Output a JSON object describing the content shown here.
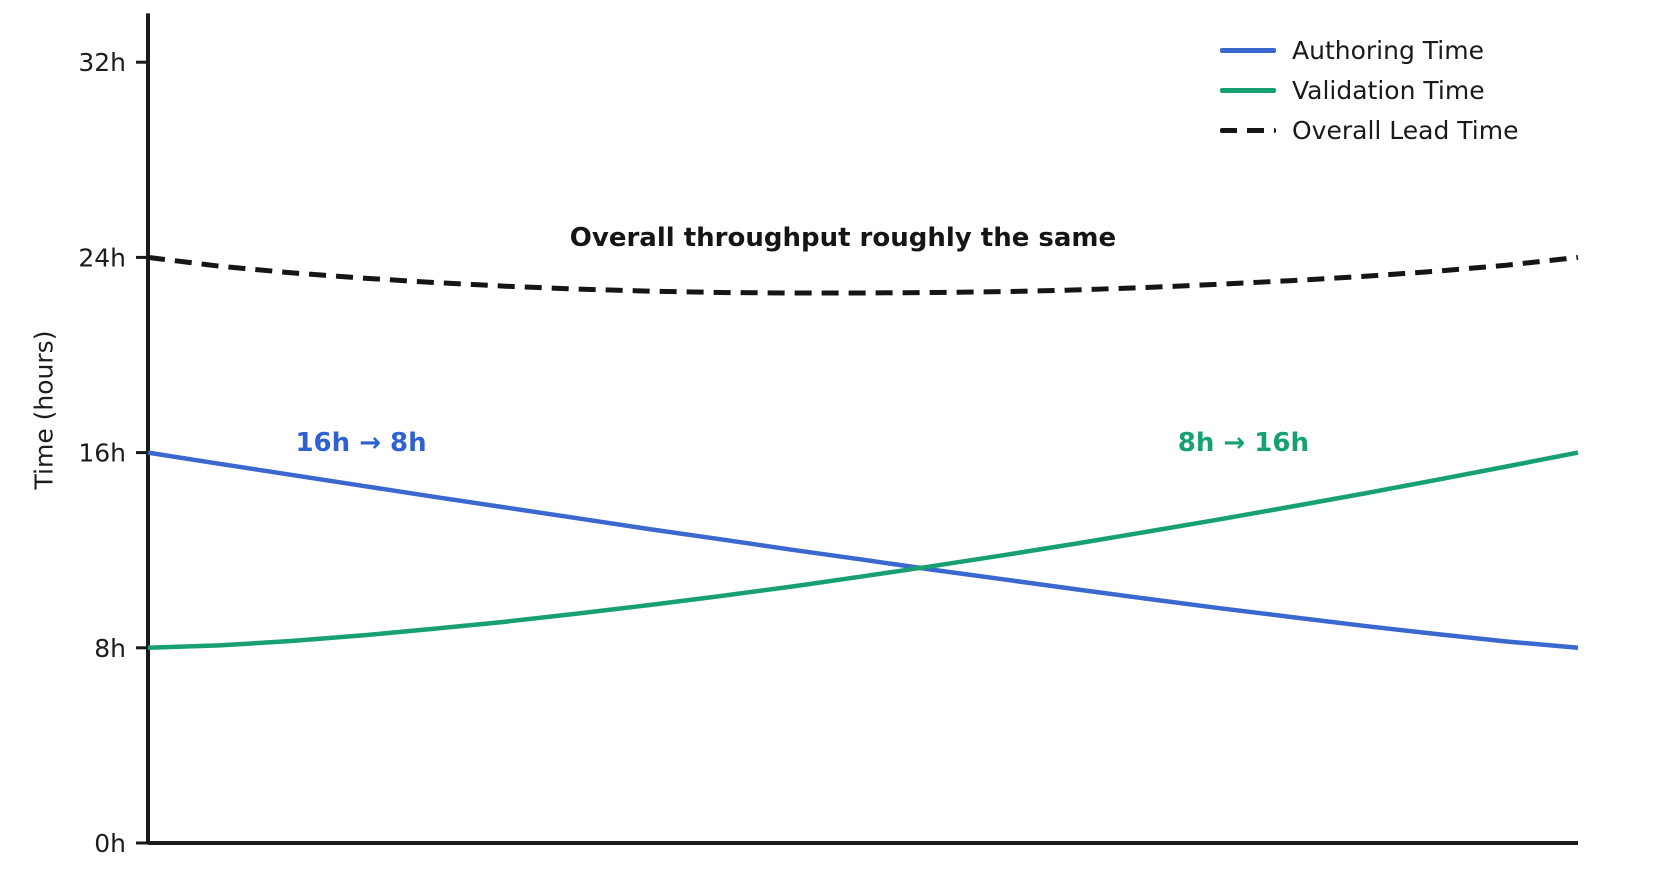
{
  "figure": {
    "background": "#ffffff",
    "axis_color": "#1a1a1a"
  },
  "chart_data": {
    "type": "line",
    "title": "",
    "xlabel": "",
    "ylabel": "Time (hours)",
    "ylim": [
      0,
      34
    ],
    "grid": false,
    "x_axis_tick_labels": "none",
    "x_unit": "percent_of_width",
    "x": [
      0,
      5,
      10,
      15,
      20,
      25,
      30,
      35,
      40,
      45,
      50,
      55,
      60,
      65,
      70,
      75,
      80,
      85,
      90,
      95,
      100
    ],
    "series": [
      {
        "name": "Authoring Time",
        "color": "#3a68cf",
        "style": "solid",
        "start_label": "16h",
        "end_label": "8h",
        "values": [
          16.0,
          15.54,
          15.09,
          14.64,
          14.19,
          13.75,
          13.31,
          12.87,
          12.45,
          12.02,
          11.61,
          11.19,
          10.79,
          10.39,
          10.0,
          9.62,
          9.26,
          8.9,
          8.57,
          8.26,
          8.0
        ]
      },
      {
        "name": "Validation Time",
        "color": "#17a173",
        "style": "solid",
        "start_label": "8h",
        "end_label": "16h",
        "values": [
          8.0,
          8.1,
          8.28,
          8.51,
          8.78,
          9.07,
          9.4,
          9.75,
          10.12,
          10.51,
          10.93,
          11.36,
          11.81,
          12.28,
          12.77,
          13.27,
          13.79,
          14.32,
          14.87,
          15.43,
          16.0
        ]
      },
      {
        "name": "Overall Lead Time",
        "color": "#151515",
        "style": "dashed",
        "start_label": "24h",
        "end_label": "24h",
        "values": [
          24.0,
          23.64,
          23.37,
          23.15,
          22.97,
          22.82,
          22.7,
          22.62,
          22.56,
          22.54,
          22.54,
          22.56,
          22.6,
          22.67,
          22.77,
          22.9,
          23.05,
          23.22,
          23.43,
          23.68,
          24.0
        ]
      }
    ],
    "yticks": [
      {
        "label": "0h",
        "value": 0
      },
      {
        "label": "8h",
        "value": 8
      },
      {
        "label": "16h",
        "value": 16
      },
      {
        "label": "24h",
        "value": 24
      },
      {
        "label": "32h",
        "value": 32
      }
    ],
    "legend": {
      "position": "top-right",
      "frame": false,
      "entries": [
        "Authoring Time",
        "Validation Time",
        "Overall Lead Time"
      ]
    },
    "annotations": [
      {
        "id": "overall-throughput-note",
        "text": "Overall throughput roughly the same",
        "color": "#151515",
        "x_pct": 48.6,
        "y_hours": 24.8
      },
      {
        "id": "authoring-change-note",
        "text": "16h → 8h",
        "color": "#2e62d0",
        "x_pct": 14.9,
        "y_hours": 16.4
      },
      {
        "id": "validation-change-note",
        "text": "8h → 16h",
        "color": "#17a173",
        "x_pct": 76.6,
        "y_hours": 16.4
      }
    ]
  }
}
